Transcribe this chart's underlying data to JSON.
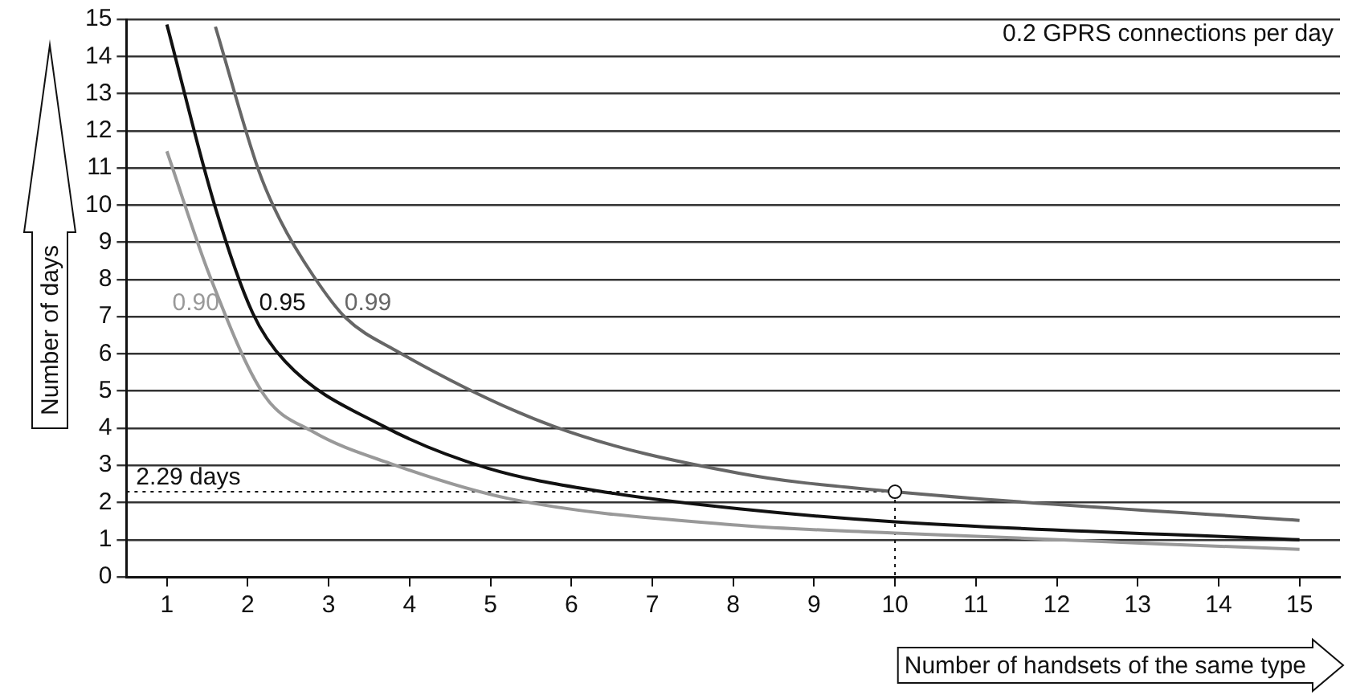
{
  "chart_data": {
    "type": "line",
    "xlabel": "Number of handsets of the same type",
    "ylabel": "Number of days",
    "xlim": [
      0.5,
      15.5
    ],
    "xticks": [
      1,
      2,
      3,
      4,
      5,
      6,
      7,
      8,
      9,
      10,
      11,
      12,
      13,
      14,
      15
    ],
    "ylim": [
      0,
      15
    ],
    "yticks": [
      0,
      1,
      2,
      3,
      4,
      5,
      6,
      7,
      8,
      9,
      10,
      11,
      12,
      13,
      14,
      15
    ],
    "grid": "y",
    "marker": "none",
    "line_style": "solid",
    "legend": false,
    "series": [
      {
        "name": "0.90",
        "color": "#999999",
        "x": [
          1.0,
          1.53,
          2.2,
          2.81,
          3.76,
          5.24,
          8.07,
          10,
          15
        ],
        "values": [
          11.45,
          8.1,
          4.9,
          3.9,
          3.05,
          2.1,
          1.39,
          1.18,
          0.74
        ]
      },
      {
        "name": "0.95",
        "color": "#111111",
        "x": [
          1.0,
          1.59,
          2.06,
          2.46,
          3.68,
          4.97,
          6.45,
          8.07,
          10,
          15
        ],
        "values": [
          14.86,
          10.0,
          7.1,
          5.8,
          4.05,
          2.92,
          2.27,
          1.83,
          1.48,
          1.0
        ]
      },
      {
        "name": "0.99",
        "color": "#666666",
        "x": [
          1.6,
          2.14,
          2.4,
          2.81,
          3.21,
          3.82,
          5.78,
          8.07,
          10,
          15
        ],
        "values": [
          14.8,
          10.9,
          9.6,
          8.1,
          6.97,
          6.1,
          4.05,
          2.79,
          2.29,
          1.52
        ]
      },
      {
        "type": "scatter",
        "color": "#111111",
        "marker": "circle",
        "x": [
          10
        ],
        "values": [
          2.29
        ]
      }
    ],
    "ref_lines": [
      {
        "axis": "y",
        "value": 2.29,
        "label": "2.29 days",
        "line_style": "dotted"
      },
      {
        "axis": "x",
        "value": 10,
        "line_style": "dotted"
      }
    ],
    "annotations": [
      "0.2 GPRS connections per day"
    ]
  }
}
